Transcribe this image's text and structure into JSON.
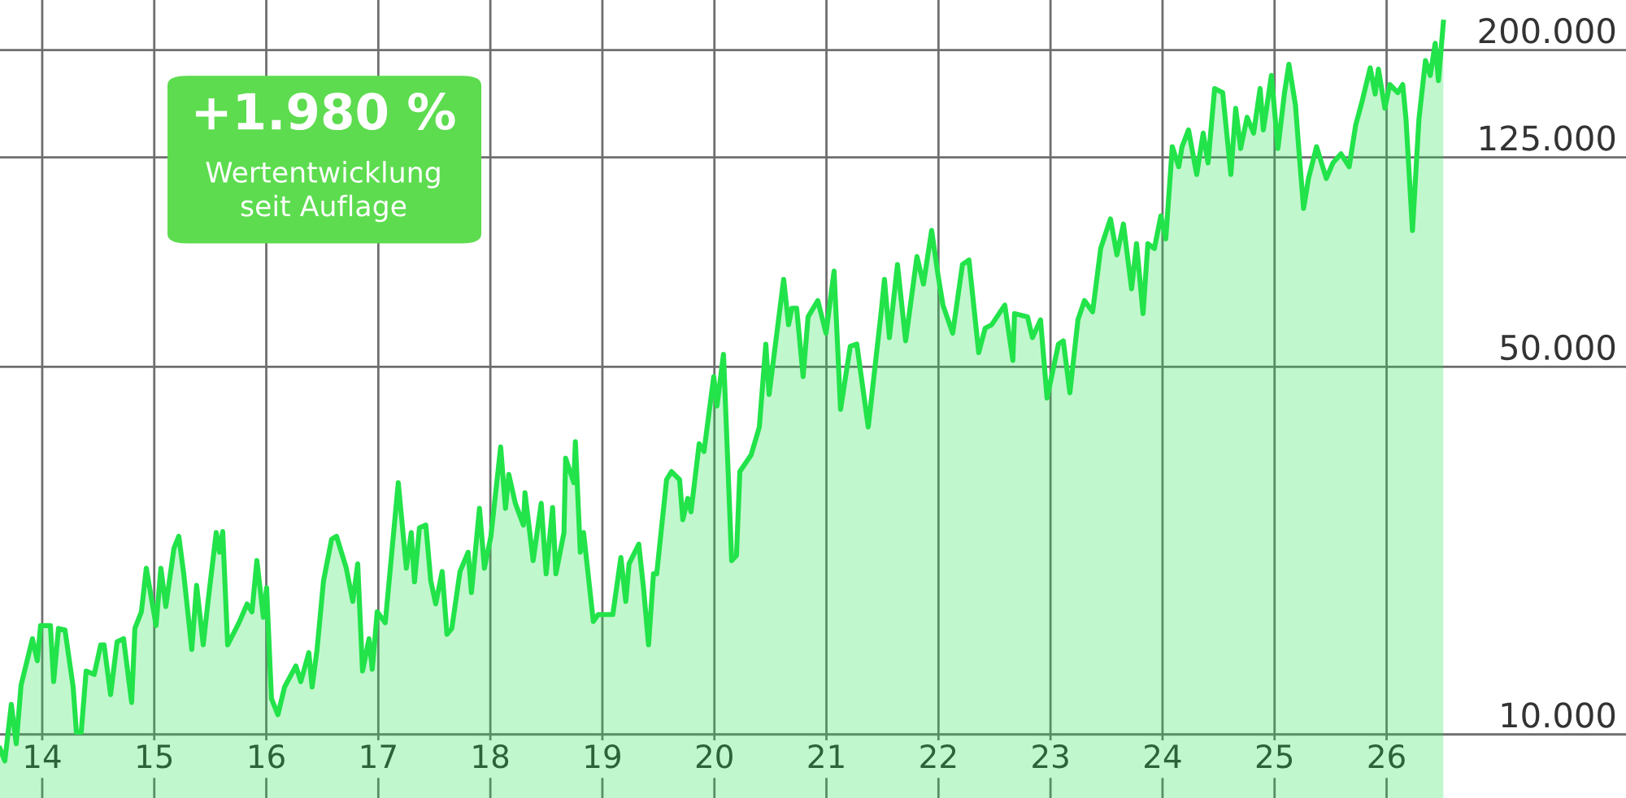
{
  "chart_data": {
    "type": "area",
    "annotations": [
      "+1.980 %",
      "Wertentwicklung\nseit Auflage"
    ],
    "x": [
      2013.623,
      2013.666,
      2013.724,
      2013.768,
      2013.811,
      2013.913,
      2013.956,
      2013.985,
      2014.073,
      2014.102,
      2014.145,
      2014.203,
      2014.276,
      2014.305,
      2014.348,
      2014.392,
      2014.464,
      2014.522,
      2014.552,
      2014.61,
      2014.668,
      2014.726,
      2014.798,
      2014.827,
      2014.885,
      2014.929,
      2015.016,
      2015.059,
      2015.103,
      2015.176,
      2015.219,
      2015.263,
      2015.335,
      2015.378,
      2015.437,
      2015.48,
      2015.553,
      2015.582,
      2015.611,
      2015.655,
      2015.756,
      2015.829,
      2015.872,
      2015.916,
      2015.974,
      2016.003,
      2016.046,
      2016.104,
      2016.163,
      2016.264,
      2016.308,
      2016.38,
      2016.409,
      2016.453,
      2016.511,
      2016.583,
      2016.627,
      2016.714,
      2016.772,
      2016.816,
      2016.859,
      2016.917,
      2016.946,
      2016.99,
      2017.062,
      2017.178,
      2017.25,
      2017.294,
      2017.323,
      2017.367,
      2017.424,
      2017.468,
      2017.512,
      2017.57,
      2017.613,
      2017.656,
      2017.729,
      2017.802,
      2017.831,
      2017.903,
      2017.947,
      2018.005,
      2018.092,
      2018.135,
      2018.165,
      2018.223,
      2018.295,
      2018.309,
      2018.382,
      2018.454,
      2018.498,
      2018.556,
      2018.585,
      2018.657,
      2018.672,
      2018.745,
      2018.759,
      2018.803,
      2018.832,
      2018.919,
      2018.962,
      2019.093,
      2019.165,
      2019.209,
      2019.238,
      2019.325,
      2019.369,
      2019.412,
      2019.456,
      2019.485,
      2019.573,
      2019.617,
      2019.689,
      2019.718,
      2019.762,
      2019.791,
      2019.864,
      2019.907,
      2019.994,
      2020.023,
      2020.081,
      2020.154,
      2020.197,
      2020.227,
      2020.328,
      2020.401,
      2020.459,
      2020.488,
      2020.618,
      2020.662,
      2020.691,
      2020.734,
      2020.792,
      2020.836,
      2020.923,
      2020.996,
      2021.068,
      2021.126,
      2021.213,
      2021.271,
      2021.373,
      2021.489,
      2021.518,
      2021.562,
      2021.634,
      2021.707,
      2021.808,
      2021.866,
      2021.939,
      2021.997,
      2022.04,
      2022.127,
      2022.214,
      2022.272,
      2022.359,
      2022.417,
      2022.475,
      2022.592,
      2022.664,
      2022.679,
      2022.795,
      2022.839,
      2022.911,
      2022.969,
      2023.071,
      2023.114,
      2023.173,
      2023.245,
      2023.303,
      2023.376,
      2023.448,
      2023.535,
      2023.593,
      2023.651,
      2023.724,
      2023.768,
      2023.826,
      2023.869,
      2023.927,
      2023.985,
      2024.029,
      2024.087,
      2024.145,
      2024.174,
      2024.232,
      2024.305,
      2024.363,
      2024.406,
      2024.465,
      2024.537,
      2024.61,
      2024.653,
      2024.697,
      2024.755,
      2024.813,
      2024.871,
      2024.9,
      2024.972,
      2025.03,
      2025.089,
      2025.128,
      2025.187,
      2025.216,
      2025.259,
      2025.303,
      2025.375,
      2025.462,
      2025.521,
      2025.593,
      2025.666,
      2025.724,
      2025.782,
      2025.854,
      2025.898,
      2025.927,
      2025.985,
      2026.028,
      2026.1,
      2026.144,
      2026.173,
      2026.231,
      2026.289,
      2026.347,
      2026.39,
      2026.434,
      2026.463,
      2026.507
    ],
    "series": [
      {
        "color": "#22e34a",
        "values": [
          9400,
          8900,
          11400,
          9600,
          12400,
          15200,
          13800,
          16100,
          16100,
          12600,
          15900,
          15800,
          12300,
          10100,
          10100,
          13200,
          13000,
          14800,
          14800,
          11900,
          15000,
          15200,
          11500,
          15900,
          17100,
          20700,
          16100,
          20700,
          17500,
          22600,
          23800,
          20200,
          14500,
          19200,
          14800,
          17900,
          24200,
          22200,
          24300,
          14800,
          16300,
          17700,
          17100,
          21400,
          16700,
          19000,
          11700,
          10900,
          12300,
          13500,
          12600,
          14300,
          12300,
          14500,
          19600,
          23500,
          23800,
          20700,
          17900,
          21100,
          13200,
          15200,
          13300,
          17100,
          16300,
          30100,
          20700,
          24200,
          19500,
          24700,
          25000,
          19600,
          17700,
          20400,
          15500,
          15900,
          20400,
          22200,
          18600,
          26900,
          20700,
          23800,
          35200,
          26900,
          31200,
          27500,
          25000,
          28800,
          21400,
          27500,
          20200,
          27000,
          20200,
          24200,
          33500,
          30100,
          36000,
          22200,
          24200,
          16400,
          16900,
          16900,
          21700,
          17900,
          21100,
          23000,
          18800,
          14800,
          20200,
          20200,
          30500,
          31600,
          30500,
          25600,
          28100,
          26500,
          35700,
          34500,
          47900,
          42100,
          52800,
          21400,
          21900,
          31600,
          34000,
          38400,
          55200,
          44300,
          73300,
          60100,
          64600,
          64600,
          47900,
          62200,
          66800,
          57900,
          76000,
          41500,
          54700,
          55200,
          38400,
          63600,
          73300,
          56800,
          78200,
          56000,
          81000,
          71800,
          90800,
          74500,
          65500,
          57900,
          78200,
          79800,
          53200,
          59200,
          60100,
          65500,
          51400,
          63100,
          62200,
          56800,
          61400,
          43600,
          55200,
          56000,
          44600,
          61400,
          66800,
          63600,
          83900,
          95500,
          81600,
          93400,
          70300,
          85700,
          63100,
          85700,
          83900,
          96800,
          87500,
          131000,
          120000,
          131000,
          141000,
          116000,
          139000,
          122000,
          169000,
          166000,
          116000,
          155000,
          130000,
          149000,
          139000,
          169000,
          141000,
          179000,
          130000,
          166000,
          188000,
          157000,
          130000,
          100000,
          114000,
          131000,
          114000,
          122000,
          127000,
          120000,
          144000,
          160000,
          185000,
          165000,
          184000,
          155000,
          172000,
          166000,
          172000,
          148000,
          90800,
          148000,
          191000,
          179000,
          206000,
          175000,
          226000
        ]
      }
    ],
    "log": "y",
    "xlim": [
      2013.623,
      2028.137
    ],
    "ylim": [
      7570,
      249000
    ],
    "xticks": [
      {
        "value": 2014,
        "label": "14"
      },
      {
        "value": 2015,
        "label": "15"
      },
      {
        "value": 2016,
        "label": "16"
      },
      {
        "value": 2017,
        "label": "17"
      },
      {
        "value": 2018,
        "label": "18"
      },
      {
        "value": 2019,
        "label": "19"
      },
      {
        "value": 2020,
        "label": "20"
      },
      {
        "value": 2021,
        "label": "21"
      },
      {
        "value": 2022,
        "label": "22"
      },
      {
        "value": 2023,
        "label": "23"
      },
      {
        "value": 2024,
        "label": "24"
      },
      {
        "value": 2025,
        "label": "25"
      },
      {
        "value": 2026,
        "label": "26"
      }
    ],
    "yticks": [
      {
        "value": 10000,
        "label": "10.000"
      },
      {
        "value": 50000,
        "label": "50.000"
      },
      {
        "value": 125000,
        "label": "125.000"
      },
      {
        "value": 200000,
        "label": "200.000"
      }
    ],
    "grid": true,
    "legend": false
  }
}
